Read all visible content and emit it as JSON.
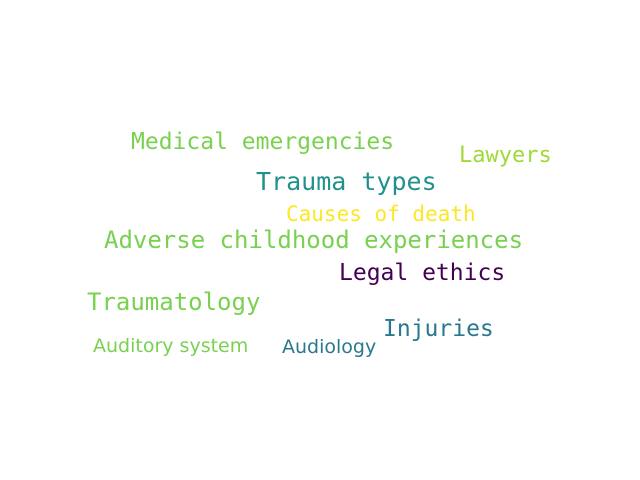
{
  "words": [
    {
      "text": "Medical emergencies",
      "color": "#7ad151"
    },
    {
      "text": "Lawyers",
      "color": "#a0da39"
    },
    {
      "text": "Trauma types",
      "color": "#21918c"
    },
    {
      "text": "Causes of death",
      "color": "#fde725"
    },
    {
      "text": "Adverse childhood experiences",
      "color": "#7ad151"
    },
    {
      "text": "Legal ethics",
      "color": "#440154"
    },
    {
      "text": "Traumatology",
      "color": "#7ad151"
    },
    {
      "text": "Injuries",
      "color": "#2a788e"
    },
    {
      "text": "Auditory system",
      "color": "#7ad151"
    },
    {
      "text": "Audiology",
      "color": "#2a788e"
    }
  ]
}
